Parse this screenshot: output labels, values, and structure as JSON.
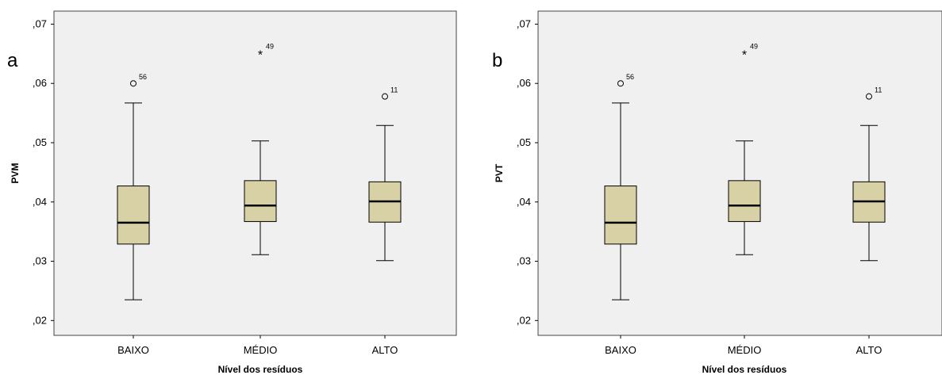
{
  "chart_data": [
    {
      "type": "boxplot",
      "panel_label": "a",
      "xlabel": "Nível dos resíduos",
      "ylabel": "PVM",
      "ylim": [
        0.0175,
        0.0722
      ],
      "yticks": [
        {
          "value": 0.02,
          "label": ",02"
        },
        {
          "value": 0.03,
          "label": ",03"
        },
        {
          "value": 0.04,
          "label": ",04"
        },
        {
          "value": 0.05,
          "label": ",05"
        },
        {
          "value": 0.06,
          "label": ",06"
        },
        {
          "value": 0.07,
          "label": ",07"
        }
      ],
      "categories": [
        "BAIXO",
        "MÉDIO",
        "ALTO"
      ],
      "boxes": [
        {
          "category": "BAIXO",
          "min": 0.0235,
          "q1": 0.0329,
          "median": 0.0365,
          "q3": 0.0427,
          "max": 0.0567,
          "outliers": [
            {
              "value": 0.06,
              "label": "56",
              "marker": "circle"
            }
          ]
        },
        {
          "category": "MÉDIO",
          "min": 0.0311,
          "q1": 0.0367,
          "median": 0.0394,
          "q3": 0.0436,
          "max": 0.0503,
          "outliers": [
            {
              "value": 0.0652,
              "label": "49",
              "marker": "star"
            }
          ]
        },
        {
          "category": "ALTO",
          "min": 0.0301,
          "q1": 0.0366,
          "median": 0.0401,
          "q3": 0.0434,
          "max": 0.0529,
          "outliers": [
            {
              "value": 0.0578,
              "label": "11",
              "marker": "circle"
            }
          ]
        }
      ],
      "colors": {
        "box_fill": "#d7d1a5",
        "plot_bg": "#f0f0f0",
        "line": "#000000",
        "frame": "#444444"
      }
    },
    {
      "type": "boxplot",
      "panel_label": "b",
      "xlabel": "Nível dos resíduos",
      "ylabel": "PVT",
      "ylim": [
        0.0175,
        0.0722
      ],
      "yticks": [
        {
          "value": 0.02,
          "label": ",02"
        },
        {
          "value": 0.03,
          "label": ",03"
        },
        {
          "value": 0.04,
          "label": ",04"
        },
        {
          "value": 0.05,
          "label": ",05"
        },
        {
          "value": 0.06,
          "label": ",06"
        },
        {
          "value": 0.07,
          "label": ",07"
        }
      ],
      "categories": [
        "BAIXO",
        "MÉDIO",
        "ALTO"
      ],
      "boxes": [
        {
          "category": "BAIXO",
          "min": 0.0235,
          "q1": 0.0329,
          "median": 0.0365,
          "q3": 0.0427,
          "max": 0.0567,
          "outliers": [
            {
              "value": 0.06,
              "label": "56",
              "marker": "circle"
            }
          ]
        },
        {
          "category": "MÉDIO",
          "min": 0.0311,
          "q1": 0.0367,
          "median": 0.0394,
          "q3": 0.0436,
          "max": 0.0503,
          "outliers": [
            {
              "value": 0.0652,
              "label": "49",
              "marker": "star"
            }
          ]
        },
        {
          "category": "ALTO",
          "min": 0.0301,
          "q1": 0.0366,
          "median": 0.0401,
          "q3": 0.0434,
          "max": 0.0529,
          "outliers": [
            {
              "value": 0.0578,
              "label": "11",
              "marker": "circle"
            }
          ]
        }
      ],
      "colors": {
        "box_fill": "#d7d1a5",
        "plot_bg": "#f0f0f0",
        "line": "#000000",
        "frame": "#444444"
      }
    }
  ]
}
